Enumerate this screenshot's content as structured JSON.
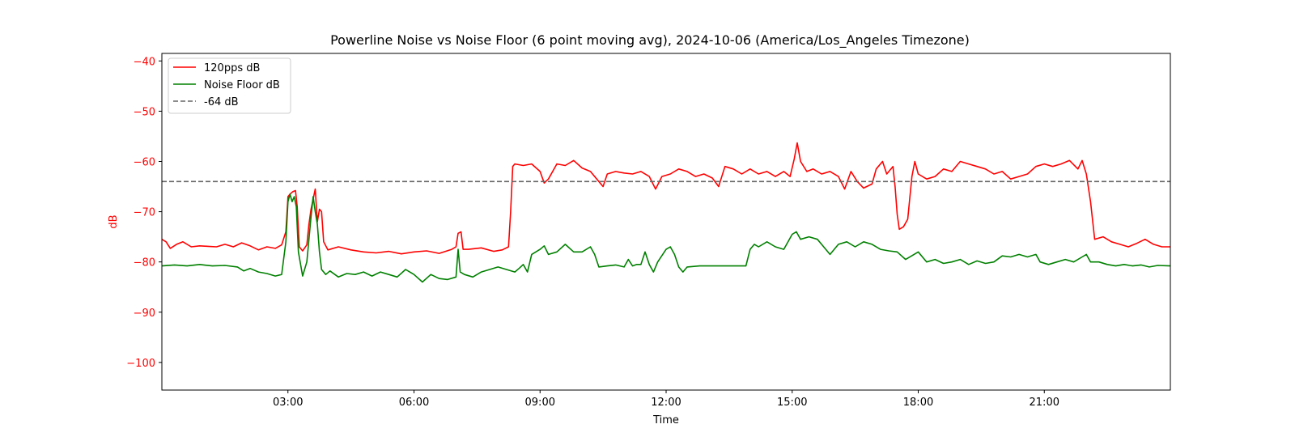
{
  "chart_data": {
    "type": "line",
    "title": "Powerline Noise vs Noise Floor (6 point moving avg), 2024-10-06 (America/Los_Angeles Timezone)",
    "xlabel": "Time",
    "ylabel": "dB",
    "xlim_hours": [
      0,
      24
    ],
    "ylim": [
      -105.5,
      -38.5
    ],
    "x_ticks": [
      {
        "hour": 3,
        "label": "03:00"
      },
      {
        "hour": 6,
        "label": "06:00"
      },
      {
        "hour": 9,
        "label": "09:00"
      },
      {
        "hour": 12,
        "label": "12:00"
      },
      {
        "hour": 15,
        "label": "15:00"
      },
      {
        "hour": 18,
        "label": "18:00"
      },
      {
        "hour": 21,
        "label": "21:00"
      }
    ],
    "y_ticks": [
      {
        "value": -40,
        "label": "−40"
      },
      {
        "value": -50,
        "label": "−50"
      },
      {
        "value": -60,
        "label": "−60"
      },
      {
        "value": -70,
        "label": "−70"
      },
      {
        "value": -80,
        "label": "−80"
      },
      {
        "value": -90,
        "label": "−90"
      },
      {
        "value": -100,
        "label": "−100"
      }
    ],
    "ylabel_color": "#ff0000",
    "ytick_color": "#ff0000",
    "grid": false,
    "legend_position": "top-left",
    "series": [
      {
        "name": "120pps dB",
        "color": "#ff0000",
        "style": "solid",
        "points": [
          [
            0.0,
            -75.5
          ],
          [
            0.1,
            -76.0
          ],
          [
            0.2,
            -77.3
          ],
          [
            0.35,
            -76.5
          ],
          [
            0.5,
            -76.0
          ],
          [
            0.7,
            -77.0
          ],
          [
            0.9,
            -76.8
          ],
          [
            1.1,
            -76.9
          ],
          [
            1.3,
            -77.0
          ],
          [
            1.5,
            -76.5
          ],
          [
            1.7,
            -77.0
          ],
          [
            1.9,
            -76.2
          ],
          [
            2.1,
            -76.8
          ],
          [
            2.3,
            -77.6
          ],
          [
            2.5,
            -77.0
          ],
          [
            2.7,
            -77.3
          ],
          [
            2.85,
            -76.6
          ],
          [
            2.95,
            -74.0
          ],
          [
            3.0,
            -67.0
          ],
          [
            3.05,
            -66.5
          ],
          [
            3.12,
            -66.0
          ],
          [
            3.18,
            -65.8
          ],
          [
            3.22,
            -69.0
          ],
          [
            3.27,
            -77.0
          ],
          [
            3.35,
            -77.8
          ],
          [
            3.45,
            -76.6
          ],
          [
            3.5,
            -72.5
          ],
          [
            3.55,
            -69.5
          ],
          [
            3.6,
            -67.5
          ],
          [
            3.65,
            -65.5
          ],
          [
            3.7,
            -72.0
          ],
          [
            3.75,
            -69.5
          ],
          [
            3.8,
            -70.0
          ],
          [
            3.85,
            -76.0
          ],
          [
            3.95,
            -77.6
          ],
          [
            4.2,
            -77.0
          ],
          [
            4.5,
            -77.6
          ],
          [
            4.8,
            -78.0
          ],
          [
            5.1,
            -78.2
          ],
          [
            5.4,
            -77.9
          ],
          [
            5.7,
            -78.4
          ],
          [
            6.0,
            -78.0
          ],
          [
            6.3,
            -77.8
          ],
          [
            6.6,
            -78.3
          ],
          [
            6.9,
            -77.5
          ],
          [
            7.0,
            -77.0
          ],
          [
            7.05,
            -74.3
          ],
          [
            7.12,
            -74.0
          ],
          [
            7.17,
            -77.5
          ],
          [
            7.3,
            -77.5
          ],
          [
            7.6,
            -77.2
          ],
          [
            7.9,
            -77.9
          ],
          [
            8.1,
            -77.6
          ],
          [
            8.25,
            -77.0
          ],
          [
            8.3,
            -70.0
          ],
          [
            8.35,
            -61.0
          ],
          [
            8.4,
            -60.5
          ],
          [
            8.6,
            -60.8
          ],
          [
            8.8,
            -60.5
          ],
          [
            9.0,
            -62.0
          ],
          [
            9.1,
            -64.3
          ],
          [
            9.2,
            -63.5
          ],
          [
            9.4,
            -60.5
          ],
          [
            9.6,
            -60.8
          ],
          [
            9.8,
            -59.8
          ],
          [
            10.0,
            -61.3
          ],
          [
            10.2,
            -62.0
          ],
          [
            10.4,
            -64.0
          ],
          [
            10.5,
            -65.0
          ],
          [
            10.6,
            -62.5
          ],
          [
            10.8,
            -62.0
          ],
          [
            11.0,
            -62.3
          ],
          [
            11.2,
            -62.5
          ],
          [
            11.4,
            -62.0
          ],
          [
            11.6,
            -63.0
          ],
          [
            11.75,
            -65.5
          ],
          [
            11.9,
            -63.0
          ],
          [
            12.1,
            -62.5
          ],
          [
            12.3,
            -61.5
          ],
          [
            12.5,
            -62.0
          ],
          [
            12.7,
            -63.0
          ],
          [
            12.9,
            -62.5
          ],
          [
            13.1,
            -63.3
          ],
          [
            13.25,
            -65.0
          ],
          [
            13.4,
            -61.0
          ],
          [
            13.6,
            -61.5
          ],
          [
            13.8,
            -62.5
          ],
          [
            14.0,
            -61.5
          ],
          [
            14.2,
            -62.5
          ],
          [
            14.4,
            -62.0
          ],
          [
            14.6,
            -63.0
          ],
          [
            14.8,
            -62.0
          ],
          [
            14.95,
            -63.0
          ],
          [
            15.05,
            -59.5
          ],
          [
            15.12,
            -56.3
          ],
          [
            15.2,
            -60.0
          ],
          [
            15.35,
            -62.0
          ],
          [
            15.5,
            -61.5
          ],
          [
            15.7,
            -62.5
          ],
          [
            15.9,
            -62.0
          ],
          [
            16.1,
            -63.0
          ],
          [
            16.25,
            -65.5
          ],
          [
            16.4,
            -62.0
          ],
          [
            16.55,
            -64.0
          ],
          [
            16.7,
            -65.3
          ],
          [
            16.9,
            -64.5
          ],
          [
            17.0,
            -61.5
          ],
          [
            17.15,
            -60.0
          ],
          [
            17.25,
            -62.5
          ],
          [
            17.4,
            -61.0
          ],
          [
            17.45,
            -65.0
          ],
          [
            17.5,
            -70.5
          ],
          [
            17.55,
            -73.5
          ],
          [
            17.65,
            -73.0
          ],
          [
            17.75,
            -71.5
          ],
          [
            17.85,
            -63.0
          ],
          [
            17.92,
            -60.0
          ],
          [
            18.0,
            -62.5
          ],
          [
            18.2,
            -63.5
          ],
          [
            18.4,
            -63.0
          ],
          [
            18.6,
            -61.5
          ],
          [
            18.8,
            -62.0
          ],
          [
            19.0,
            -60.0
          ],
          [
            19.2,
            -60.5
          ],
          [
            19.4,
            -61.0
          ],
          [
            19.6,
            -61.5
          ],
          [
            19.8,
            -62.5
          ],
          [
            20.0,
            -62.0
          ],
          [
            20.2,
            -63.5
          ],
          [
            20.4,
            -63.0
          ],
          [
            20.6,
            -62.5
          ],
          [
            20.8,
            -61.0
          ],
          [
            21.0,
            -60.5
          ],
          [
            21.2,
            -61.0
          ],
          [
            21.4,
            -60.5
          ],
          [
            21.6,
            -59.8
          ],
          [
            21.8,
            -61.5
          ],
          [
            21.9,
            -59.8
          ],
          [
            22.0,
            -62.5
          ],
          [
            22.1,
            -68.0
          ],
          [
            22.2,
            -75.5
          ],
          [
            22.4,
            -75.0
          ],
          [
            22.6,
            -76.0
          ],
          [
            22.8,
            -76.5
          ],
          [
            23.0,
            -77.0
          ],
          [
            23.2,
            -76.3
          ],
          [
            23.4,
            -75.5
          ],
          [
            23.6,
            -76.5
          ],
          [
            23.8,
            -77.0
          ],
          [
            24.0,
            -77.0
          ]
        ]
      },
      {
        "name": "Noise Floor dB",
        "color": "#008000",
        "style": "solid",
        "points": [
          [
            0.0,
            -80.8
          ],
          [
            0.3,
            -80.6
          ],
          [
            0.6,
            -80.8
          ],
          [
            0.9,
            -80.5
          ],
          [
            1.2,
            -80.8
          ],
          [
            1.5,
            -80.7
          ],
          [
            1.8,
            -81.0
          ],
          [
            1.95,
            -81.8
          ],
          [
            2.1,
            -81.3
          ],
          [
            2.3,
            -82.0
          ],
          [
            2.5,
            -82.3
          ],
          [
            2.7,
            -82.8
          ],
          [
            2.85,
            -82.5
          ],
          [
            2.95,
            -76.0
          ],
          [
            3.0,
            -68.0
          ],
          [
            3.05,
            -66.5
          ],
          [
            3.1,
            -68.0
          ],
          [
            3.15,
            -67.0
          ],
          [
            3.2,
            -69.0
          ],
          [
            3.25,
            -78.0
          ],
          [
            3.35,
            -82.8
          ],
          [
            3.45,
            -80.0
          ],
          [
            3.55,
            -71.0
          ],
          [
            3.6,
            -67.0
          ],
          [
            3.65,
            -70.0
          ],
          [
            3.7,
            -72.5
          ],
          [
            3.75,
            -78.0
          ],
          [
            3.8,
            -81.5
          ],
          [
            3.9,
            -82.5
          ],
          [
            4.0,
            -81.8
          ],
          [
            4.2,
            -83.0
          ],
          [
            4.4,
            -82.3
          ],
          [
            4.6,
            -82.5
          ],
          [
            4.8,
            -82.0
          ],
          [
            5.0,
            -82.8
          ],
          [
            5.2,
            -82.0
          ],
          [
            5.4,
            -82.5
          ],
          [
            5.6,
            -83.0
          ],
          [
            5.8,
            -81.5
          ],
          [
            6.0,
            -82.5
          ],
          [
            6.2,
            -84.0
          ],
          [
            6.4,
            -82.5
          ],
          [
            6.6,
            -83.3
          ],
          [
            6.8,
            -83.5
          ],
          [
            7.0,
            -83.0
          ],
          [
            7.05,
            -77.5
          ],
          [
            7.1,
            -82.0
          ],
          [
            7.2,
            -82.5
          ],
          [
            7.4,
            -83.0
          ],
          [
            7.6,
            -82.0
          ],
          [
            7.8,
            -81.5
          ],
          [
            8.0,
            -81.0
          ],
          [
            8.2,
            -81.5
          ],
          [
            8.4,
            -82.0
          ],
          [
            8.5,
            -81.3
          ],
          [
            8.6,
            -80.5
          ],
          [
            8.7,
            -82.0
          ],
          [
            8.8,
            -78.5
          ],
          [
            9.0,
            -77.5
          ],
          [
            9.1,
            -76.8
          ],
          [
            9.2,
            -78.5
          ],
          [
            9.4,
            -78.0
          ],
          [
            9.6,
            -76.5
          ],
          [
            9.8,
            -78.0
          ],
          [
            10.0,
            -78.0
          ],
          [
            10.2,
            -77.0
          ],
          [
            10.3,
            -78.5
          ],
          [
            10.4,
            -81.0
          ],
          [
            10.6,
            -80.8
          ],
          [
            10.8,
            -80.6
          ],
          [
            11.0,
            -81.0
          ],
          [
            11.1,
            -79.5
          ],
          [
            11.2,
            -80.8
          ],
          [
            11.3,
            -80.5
          ],
          [
            11.4,
            -80.5
          ],
          [
            11.5,
            -78.0
          ],
          [
            11.6,
            -80.5
          ],
          [
            11.7,
            -82.0
          ],
          [
            11.8,
            -80.0
          ],
          [
            12.0,
            -77.5
          ],
          [
            12.1,
            -77.0
          ],
          [
            12.2,
            -78.5
          ],
          [
            12.3,
            -81.0
          ],
          [
            12.4,
            -82.0
          ],
          [
            12.5,
            -81.0
          ],
          [
            12.8,
            -80.8
          ],
          [
            13.1,
            -80.8
          ],
          [
            13.4,
            -80.8
          ],
          [
            13.7,
            -80.8
          ],
          [
            13.9,
            -80.8
          ],
          [
            14.0,
            -77.5
          ],
          [
            14.1,
            -76.5
          ],
          [
            14.2,
            -77.0
          ],
          [
            14.4,
            -76.0
          ],
          [
            14.6,
            -77.0
          ],
          [
            14.8,
            -77.5
          ],
          [
            15.0,
            -74.5
          ],
          [
            15.1,
            -74.0
          ],
          [
            15.2,
            -75.5
          ],
          [
            15.4,
            -75.0
          ],
          [
            15.6,
            -75.5
          ],
          [
            15.8,
            -77.5
          ],
          [
            15.9,
            -78.5
          ],
          [
            16.1,
            -76.5
          ],
          [
            16.3,
            -76.0
          ],
          [
            16.5,
            -77.0
          ],
          [
            16.7,
            -76.0
          ],
          [
            16.9,
            -76.5
          ],
          [
            17.1,
            -77.5
          ],
          [
            17.3,
            -77.8
          ],
          [
            17.5,
            -78.0
          ],
          [
            17.7,
            -79.5
          ],
          [
            17.9,
            -78.5
          ],
          [
            18.0,
            -78.0
          ],
          [
            18.2,
            -80.0
          ],
          [
            18.4,
            -79.5
          ],
          [
            18.6,
            -80.3
          ],
          [
            18.8,
            -80.0
          ],
          [
            19.0,
            -79.5
          ],
          [
            19.2,
            -80.5
          ],
          [
            19.4,
            -79.8
          ],
          [
            19.6,
            -80.3
          ],
          [
            19.8,
            -80.0
          ],
          [
            20.0,
            -78.8
          ],
          [
            20.2,
            -79.0
          ],
          [
            20.4,
            -78.5
          ],
          [
            20.6,
            -79.0
          ],
          [
            20.8,
            -78.5
          ],
          [
            20.9,
            -80.0
          ],
          [
            21.1,
            -80.5
          ],
          [
            21.3,
            -80.0
          ],
          [
            21.5,
            -79.5
          ],
          [
            21.7,
            -80.0
          ],
          [
            21.9,
            -79.0
          ],
          [
            22.0,
            -78.5
          ],
          [
            22.1,
            -80.0
          ],
          [
            22.3,
            -80.0
          ],
          [
            22.5,
            -80.5
          ],
          [
            22.7,
            -80.8
          ],
          [
            22.9,
            -80.5
          ],
          [
            23.1,
            -80.8
          ],
          [
            23.3,
            -80.6
          ],
          [
            23.5,
            -81.0
          ],
          [
            23.7,
            -80.7
          ],
          [
            24.0,
            -80.8
          ]
        ]
      },
      {
        "name": "-64 dB",
        "color": "#666666",
        "style": "dashed",
        "points": [
          [
            0,
            -64
          ],
          [
            24,
            -64
          ]
        ]
      }
    ]
  }
}
